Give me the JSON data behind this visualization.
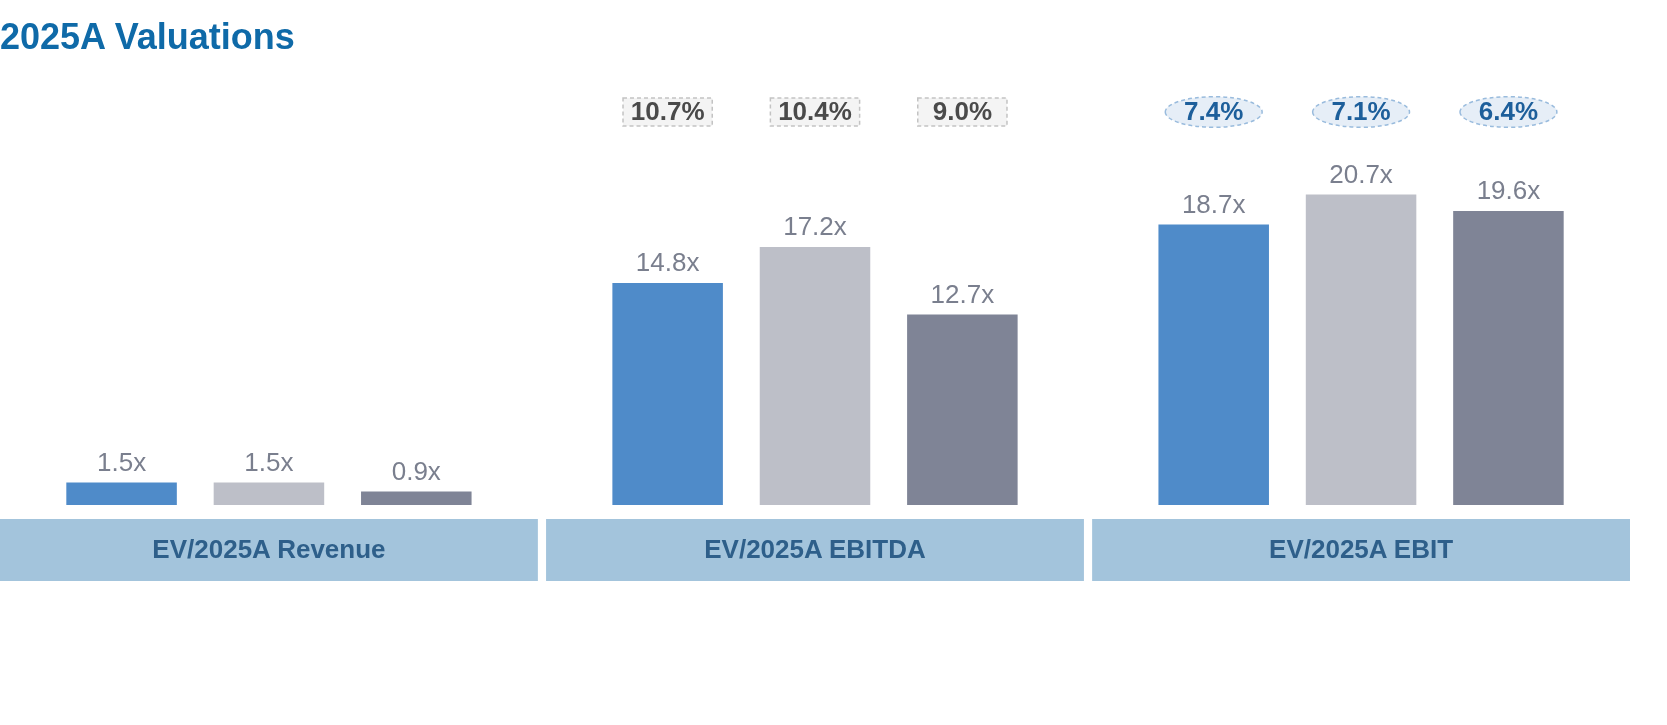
{
  "chart_data": {
    "type": "bar",
    "title": "2025A Valuations",
    "categories": [
      "EV/2025A Revenue",
      "EV/2025A EBITDA",
      "EV/2025A EBIT"
    ],
    "series": [
      {
        "color": "#4f8bc9",
        "values": [
          1.5,
          14.8,
          18.7
        ],
        "value_labels": [
          "1.5x",
          "14.8x",
          "18.7x"
        ]
      },
      {
        "color": "#bdbfc8",
        "values": [
          1.5,
          17.2,
          20.7
        ],
        "value_labels": [
          "1.5x",
          "17.2x",
          "20.7x"
        ]
      },
      {
        "color": "#7f8496",
        "values": [
          0.9,
          12.7,
          19.6
        ],
        "value_labels": [
          "0.9x",
          "12.7x",
          "19.6x"
        ]
      }
    ],
    "annotations": [
      "10.7%",
      "10.4%",
      "9.0%",
      "7.4%",
      "7.1%",
      "6.4%"
    ],
    "data_labels": true
  }
}
